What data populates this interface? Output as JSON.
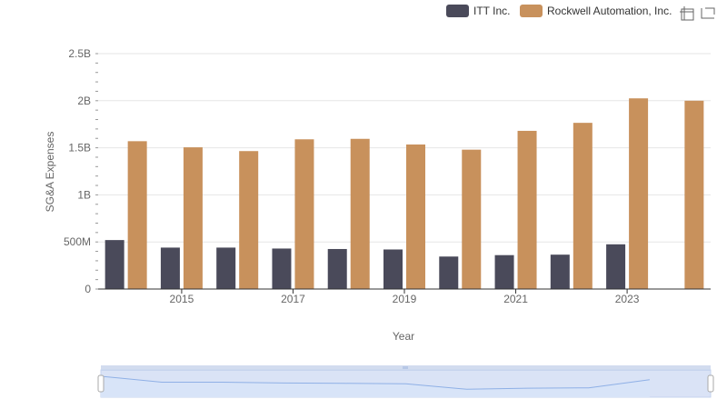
{
  "chart_data": {
    "type": "bar",
    "title": "",
    "xlabel": "Year",
    "ylabel": "SG&A Expenses",
    "ylim": [
      0,
      2500000000
    ],
    "y_ticks": [
      {
        "value": 0,
        "label": "0"
      },
      {
        "value": 500000000,
        "label": "500M"
      },
      {
        "value": 1000000000,
        "label": "1B"
      },
      {
        "value": 1500000000,
        "label": "1.5B"
      },
      {
        "value": 2000000000,
        "label": "2B"
      },
      {
        "value": 2500000000,
        "label": "2.5B"
      }
    ],
    "categories": [
      "2014",
      "2015",
      "2016",
      "2017",
      "2018",
      "2019",
      "2020",
      "2021",
      "2022",
      "2023",
      "2024"
    ],
    "x_tick_labels": [
      "2015",
      "2017",
      "2019",
      "2021",
      "2023"
    ],
    "grid": true,
    "legend_position": "top-right",
    "series": [
      {
        "name": "ITT Inc.",
        "color": "#4a4a5a",
        "values": [
          520000000,
          440000000,
          440000000,
          430000000,
          425000000,
          420000000,
          345000000,
          360000000,
          365000000,
          475000000,
          null
        ]
      },
      {
        "name": "Rockwell Automation, Inc.",
        "color": "#c8915c",
        "values": [
          1570000000,
          1505000000,
          1465000000,
          1590000000,
          1595000000,
          1535000000,
          1480000000,
          1680000000,
          1765000000,
          2025000000,
          2000000000
        ]
      }
    ]
  },
  "toolbar": {
    "icons": [
      "zoom-icon",
      "restore-icon"
    ]
  },
  "colors": {
    "grid": "#e6e6e6",
    "axis": "#333333",
    "slider_fill": "#d8e4f8",
    "slider_line": "#8fb0e6",
    "slider_bg": "#e8eefa"
  }
}
